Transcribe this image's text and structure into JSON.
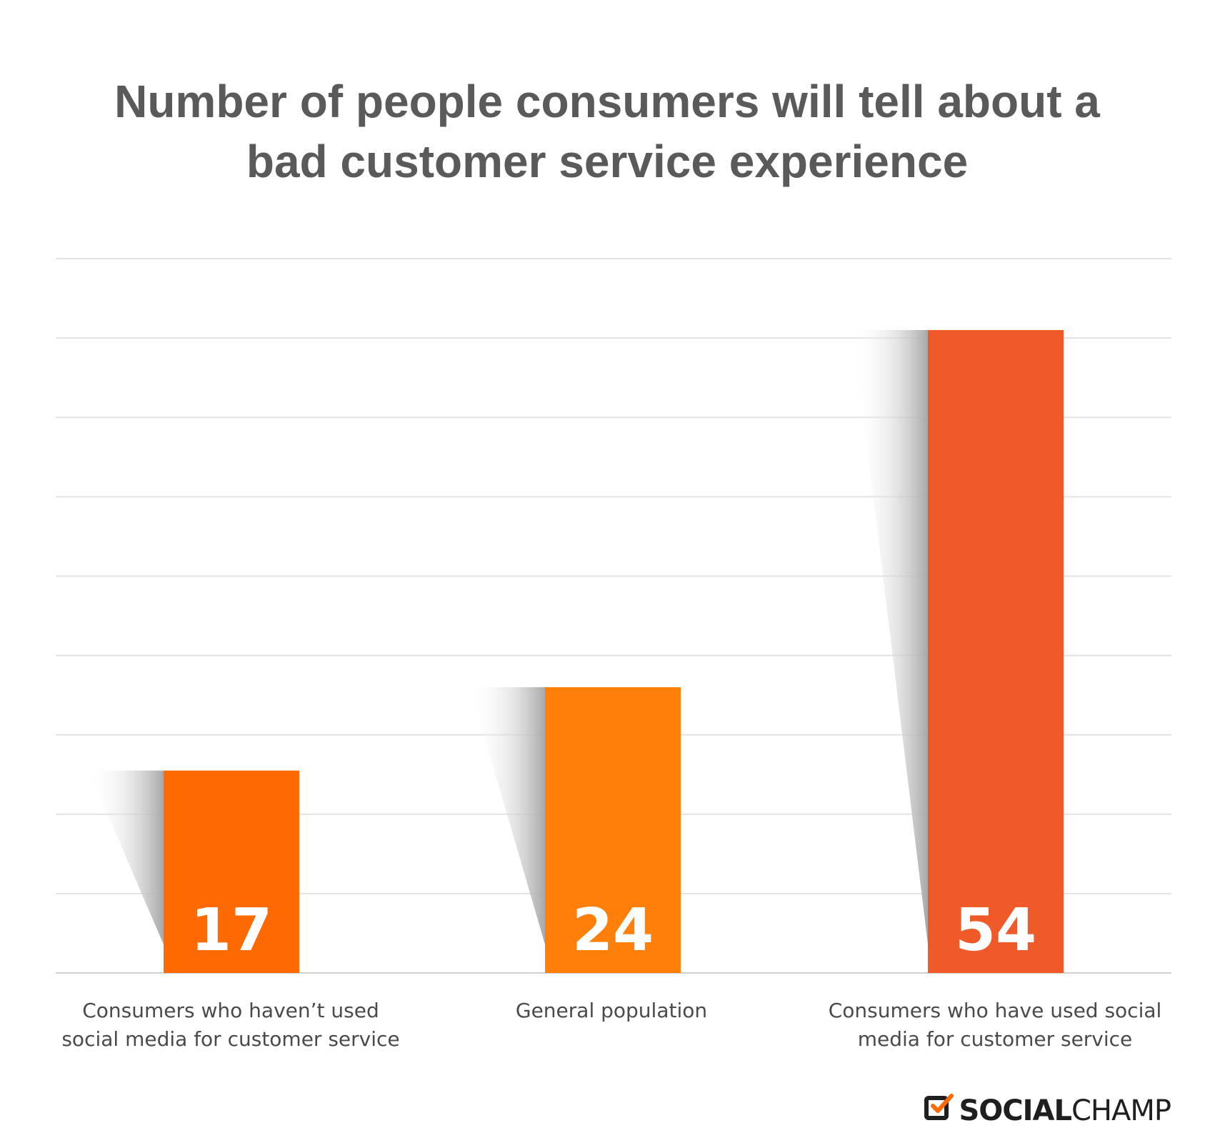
{
  "title": "Number of people consumers will tell about a bad customer service experience",
  "chart_data": {
    "type": "bar",
    "categories": [
      "Consumers who haven’t used social media for customer service",
      "General population",
      "Consumers who have used social media for customer service"
    ],
    "values": [
      17,
      24,
      54
    ],
    "data_labels": [
      "17",
      "24",
      "54"
    ],
    "colors": [
      "#FF6A00",
      "#FF7F0A",
      "#F05A28"
    ],
    "ylim": [
      0,
      60
    ],
    "grid": true,
    "xlabel": "",
    "ylabel": ""
  },
  "labels": {
    "cat0_line1": "Consumers who haven’t used",
    "cat0_line2": "social media for customer service",
    "cat1_line1": "General population",
    "cat2_line1": "Consumers who have used social",
    "cat2_line2": "media for customer service"
  },
  "brand": {
    "part1": "SOCIAL",
    "part2": "CHAMP",
    "icon": "checkbox-check-icon",
    "check_color": "#FF6A00"
  }
}
